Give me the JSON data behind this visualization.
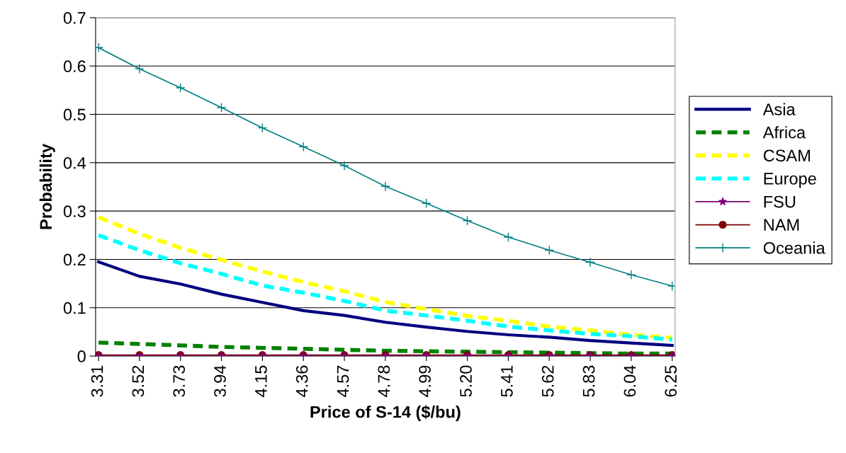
{
  "chart_data": {
    "type": "line",
    "xlabel": "Price of S-14 ($/bu)",
    "ylabel": "Probability",
    "x": [
      3.31,
      3.52,
      3.73,
      3.94,
      4.15,
      4.36,
      4.57,
      4.78,
      4.99,
      5.2,
      5.41,
      5.62,
      5.83,
      6.04,
      6.25
    ],
    "xlim": [
      3.295,
      6.265
    ],
    "xticks": [
      {
        "value": 3.31,
        "label": "3.31"
      },
      {
        "value": 3.52,
        "label": "3.52"
      },
      {
        "value": 3.73,
        "label": "3.73"
      },
      {
        "value": 3.94,
        "label": "3.94"
      },
      {
        "value": 4.15,
        "label": "4.15"
      },
      {
        "value": 4.36,
        "label": "4.36"
      },
      {
        "value": 4.57,
        "label": "4.57"
      },
      {
        "value": 4.78,
        "label": "4.78"
      },
      {
        "value": 4.99,
        "label": "4.99"
      },
      {
        "value": 5.2,
        "label": "5.20"
      },
      {
        "value": 5.41,
        "label": "5.41"
      },
      {
        "value": 5.62,
        "label": "5.62"
      },
      {
        "value": 5.83,
        "label": "5.83"
      },
      {
        "value": 6.04,
        "label": "6.04"
      },
      {
        "value": 6.25,
        "label": "6.25"
      }
    ],
    "ylim": [
      0,
      0.7
    ],
    "yticks": [
      0,
      0.1,
      0.2,
      0.3,
      0.4,
      0.5,
      0.6,
      0.7
    ],
    "grid": "y",
    "legend": "right",
    "series": [
      {
        "name": "Asia",
        "color": "#000080",
        "line_style": "solid",
        "marker": "none",
        "values": [
          0.195,
          0.165,
          0.149,
          0.128,
          0.111,
          0.094,
          0.084,
          0.07,
          0.06,
          0.051,
          0.044,
          0.039,
          0.032,
          0.027,
          0.022
        ]
      },
      {
        "name": "Africa",
        "color": "#008000",
        "line_style": "dashed",
        "marker": "none",
        "values": [
          0.028,
          0.025,
          0.022,
          0.019,
          0.017,
          0.015,
          0.013,
          0.011,
          0.01,
          0.009,
          0.008,
          0.007,
          0.006,
          0.005,
          0.005
        ]
      },
      {
        "name": "CSAM",
        "color": "#ffff00",
        "line_style": "dashed",
        "marker": "none",
        "values": [
          0.287,
          0.253,
          0.224,
          0.199,
          0.175,
          0.153,
          0.134,
          0.112,
          0.097,
          0.083,
          0.073,
          0.061,
          0.053,
          0.044,
          0.038
        ]
      },
      {
        "name": "Europe",
        "color": "#00ffff",
        "line_style": "dashed",
        "marker": "none",
        "values": [
          0.25,
          0.219,
          0.192,
          0.17,
          0.146,
          0.131,
          0.114,
          0.094,
          0.084,
          0.073,
          0.061,
          0.053,
          0.046,
          0.041,
          0.034
        ]
      },
      {
        "name": "FSU",
        "color": "#800080",
        "line_style": "solid",
        "marker": "star",
        "values": [
          0,
          0,
          0,
          0,
          0,
          0,
          0,
          0,
          0,
          0,
          0,
          0,
          0,
          0,
          0
        ]
      },
      {
        "name": "NAM",
        "color": "#800000",
        "line_style": "solid",
        "marker": "circle",
        "values": [
          0.002,
          0.002,
          0.002,
          0.002,
          0.002,
          0.002,
          0.002,
          0.002,
          0.002,
          0.002,
          0.002,
          0.002,
          0.002,
          0.002,
          0.002
        ]
      },
      {
        "name": "Oceania",
        "color": "#008080",
        "line_style": "solid",
        "marker": "cross",
        "values": [
          0.638,
          0.594,
          0.555,
          0.514,
          0.472,
          0.433,
          0.394,
          0.351,
          0.316,
          0.28,
          0.246,
          0.219,
          0.194,
          0.168,
          0.145
        ]
      }
    ]
  }
}
